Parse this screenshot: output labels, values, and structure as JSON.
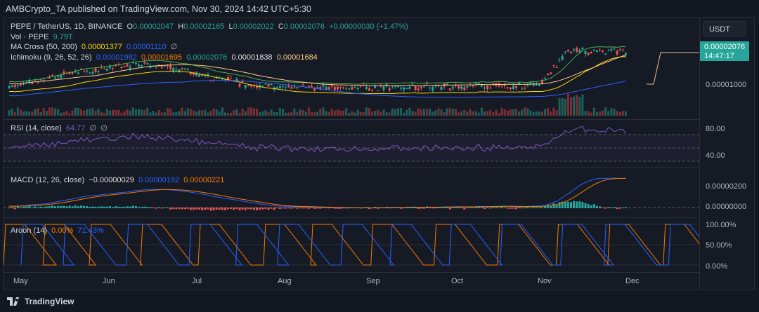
{
  "header": {
    "published": "AMBCrypto_TA published on TradingView.com, Nov 30, 2024 14:42 UTC+5:30"
  },
  "symbol": {
    "title": "PEPE / TetherUS, 1D, BINANCE",
    "o_label": "O",
    "o": "0.00002047",
    "h_label": "H",
    "h": "0.00002165",
    "l_label": "L",
    "l": "0.00002022",
    "c_label": "C",
    "c": "0.00002076",
    "change": "+0.00000030 (+1.47%)"
  },
  "volume": {
    "label": "Vol · PEPE",
    "value": "9.79T"
  },
  "ma_cross": {
    "label": "MA Cross (50, 200)",
    "v1": "0.00001377",
    "v2": "0.00001110",
    "v3": "∅"
  },
  "ichimoku": {
    "label": "Ichimoku (9, 26, 52, 26)",
    "v1": "0.00001982",
    "v2": "0.00001695",
    "v3": "0.00002076",
    "v4": "0.00001838",
    "v5": "0.00001684"
  },
  "rsi": {
    "label": "RSI (14, close)",
    "value": "64.77",
    "v2": "∅",
    "v3": "∅",
    "ticks": [
      "80.00",
      "40.00"
    ]
  },
  "macd": {
    "label": "MACD (12, 26, close)",
    "hist": "−0.00000029",
    "macd": "0.00000192",
    "signal": "0.00000221",
    "ticks": [
      "0.00000200",
      "0.00000000"
    ]
  },
  "aroon": {
    "label": "Aroon (14)",
    "up": "0.00%",
    "down": "71.43%",
    "ticks": [
      "100.00%",
      "50.00%",
      "0.00%"
    ]
  },
  "price_axis": {
    "currency": "USDT",
    "last_price": "0.00002076",
    "countdown": "14:47:17",
    "tick": "0.00001000"
  },
  "time_axis": [
    "May",
    "Jun",
    "Jul",
    "Aug",
    "Sep",
    "Oct",
    "Nov",
    "Dec"
  ],
  "footer": {
    "brand": "TradingView"
  },
  "colors": {
    "up": "#26a69a",
    "down": "#ef5350",
    "bg": "#131722"
  }
}
